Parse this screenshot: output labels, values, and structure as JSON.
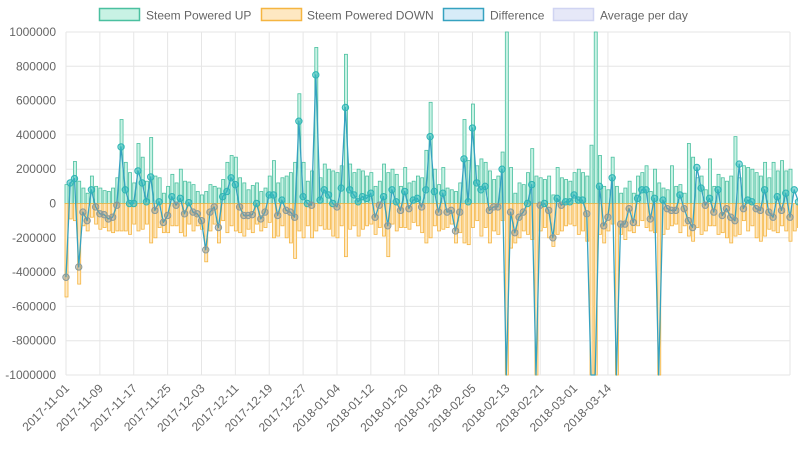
{
  "chart_data": {
    "type": "bar",
    "title": "",
    "xlabel": "",
    "ylabel": "",
    "ylim": [
      -1000000,
      1000000
    ],
    "y_ticks": [
      1000000,
      800000,
      600000,
      400000,
      200000,
      0,
      -200000,
      -400000,
      -600000,
      -800000,
      -1000000
    ],
    "y_tick_labels": [
      "1000000",
      "800000",
      "600000",
      "400000",
      "200000",
      "0",
      "-200000",
      "-400000",
      "-600000",
      "-800000",
      "-1000000"
    ],
    "x_range": [
      "2017-11-01",
      "2018-03-14"
    ],
    "x_tick_labels": [
      "2017-11-01",
      "2017-11-09",
      "2017-11-17",
      "2017-11-25",
      "2017-12-03",
      "2017-12-11",
      "2017-12-19",
      "2017-12-27",
      "2018-01-04",
      "2018-01-12",
      "2018-01-20",
      "2018-01-28",
      "2018-02-05",
      "2018-02-13",
      "2018-02-21",
      "2018-03-01",
      "2018-03-14"
    ],
    "grid": true,
    "legend_position": "top",
    "series": [
      {
        "name": "Steem Powered UP",
        "type": "bar",
        "color": "#4bc0a0",
        "fill": "#c8f2e4",
        "values": [
          110000,
          120000,
          245000,
          130000,
          90000,
          60000,
          160000,
          100000,
          90000,
          75000,
          70000,
          90000,
          150000,
          490000,
          240000,
          180000,
          120000,
          350000,
          270000,
          130000,
          385000,
          160000,
          150000,
          60000,
          100000,
          170000,
          120000,
          200000,
          130000,
          125000,
          110000,
          70000,
          50000,
          70000,
          110000,
          100000,
          90000,
          140000,
          240000,
          280000,
          270000,
          150000,
          120000,
          80000,
          105000,
          120000,
          70000,
          90000,
          160000,
          250000,
          120000,
          150000,
          160000,
          180000,
          240000,
          640000,
          240000,
          130000,
          190000,
          910000,
          150000,
          230000,
          200000,
          190000,
          180000,
          220000,
          870000,
          230000,
          180000,
          200000,
          190000,
          160000,
          180000,
          100000,
          130000,
          230000,
          180000,
          200000,
          170000,
          100000,
          210000,
          120000,
          130000,
          160000,
          150000,
          310000,
          590000,
          200000,
          110000,
          210000,
          90000,
          80000,
          70000,
          120000,
          490000,
          250000,
          580000,
          220000,
          260000,
          240000,
          190000,
          140000,
          160000,
          300000,
          1000000,
          210000,
          60000,
          120000,
          110000,
          180000,
          320000,
          160000,
          150000,
          140000,
          160000,
          50000,
          210000,
          150000,
          140000,
          130000,
          180000,
          200000,
          180000,
          160000,
          340000,
          1000000,
          280000,
          100000,
          80000,
          270000,
          100000,
          60000,
          90000,
          130000,
          60000,
          160000,
          180000,
          220000,
          70000,
          200000,
          120000,
          90000,
          80000,
          220000,
          100000,
          110000,
          60000,
          350000,
          270000,
          150000,
          160000,
          80000,
          260000,
          100000,
          170000,
          150000,
          130000,
          160000,
          390000,
          150000,
          220000,
          210000,
          200000,
          180000,
          160000,
          240000,
          150000,
          240000,
          190000,
          250000,
          190000,
          200000
        ]
      },
      {
        "name": "Steem Powered DOWN",
        "type": "bar",
        "color": "#f5b541",
        "fill": "#fee8c2",
        "values": [
          -545000,
          -90000,
          -100000,
          -470000,
          -130000,
          -160000,
          -80000,
          -120000,
          -150000,
          -140000,
          -160000,
          -170000,
          -160000,
          -160000,
          -160000,
          -180000,
          -120000,
          -160000,
          -150000,
          -120000,
          -230000,
          -200000,
          -140000,
          -170000,
          -170000,
          -130000,
          -130000,
          -170000,
          -190000,
          -120000,
          -160000,
          -130000,
          -150000,
          -340000,
          -160000,
          -120000,
          -230000,
          -100000,
          -170000,
          -130000,
          -160000,
          -170000,
          -190000,
          -150000,
          -170000,
          -120000,
          -160000,
          -140000,
          -110000,
          -200000,
          -190000,
          -130000,
          -200000,
          -230000,
          -320000,
          -160000,
          -200000,
          -130000,
          -200000,
          -160000,
          -130000,
          -150000,
          -150000,
          -190000,
          -200000,
          -130000,
          -310000,
          -150000,
          -130000,
          -190000,
          -150000,
          -130000,
          -120000,
          -180000,
          -140000,
          -190000,
          -310000,
          -120000,
          -160000,
          -140000,
          -140000,
          -150000,
          -110000,
          -130000,
          -170000,
          -230000,
          -200000,
          -130000,
          -160000,
          -150000,
          -140000,
          -120000,
          -230000,
          -170000,
          -230000,
          -240000,
          -140000,
          -100000,
          -190000,
          -140000,
          -230000,
          -160000,
          -180000,
          -100000,
          -1000000,
          -260000,
          -230000,
          -200000,
          -160000,
          -180000,
          -210000,
          -1000000,
          -160000,
          -140000,
          -200000,
          -250000,
          -180000,
          -160000,
          -130000,
          -120000,
          -130000,
          -180000,
          -160000,
          -220000,
          -1000000,
          -1000000,
          -180000,
          -230000,
          -160000,
          -120000,
          -1000000,
          -180000,
          -210000,
          -160000,
          -170000,
          -130000,
          -100000,
          -140000,
          -160000,
          -170000,
          -1000000,
          -180000,
          -150000,
          -130000,
          -120000,
          -170000,
          -130000,
          -190000,
          -220000,
          -140000,
          -180000,
          -160000,
          -130000,
          -130000,
          -180000,
          -170000,
          -200000,
          -230000,
          -190000,
          -180000,
          -100000,
          -160000,
          -130000,
          -200000,
          -220000,
          -190000,
          -150000,
          -160000,
          -170000,
          -130000,
          -160000,
          -220000,
          -160000,
          -140000,
          -100000,
          -170000
        ]
      },
      {
        "name": "Difference",
        "type": "line",
        "color": "#36a2c0",
        "fill": "#d7ecf8",
        "values": [
          -430000,
          120000,
          145000,
          -370000,
          -50000,
          -100000,
          80000,
          -20000,
          -60000,
          -65000,
          -90000,
          -80000,
          -10000,
          330000,
          80000,
          0,
          0,
          190000,
          120000,
          10000,
          155000,
          -40000,
          10000,
          -110000,
          -70000,
          40000,
          -10000,
          30000,
          -60000,
          5000,
          -50000,
          -60000,
          -100000,
          -270000,
          -50000,
          -20000,
          -140000,
          40000,
          70000,
          150000,
          110000,
          -20000,
          -70000,
          -70000,
          -65000,
          0,
          -90000,
          -50000,
          50000,
          50000,
          -70000,
          20000,
          -40000,
          -50000,
          -80000,
          480000,
          40000,
          0,
          -10000,
          750000,
          20000,
          80000,
          50000,
          0,
          -20000,
          90000,
          560000,
          80000,
          50000,
          10000,
          40000,
          30000,
          60000,
          -80000,
          -10000,
          40000,
          -130000,
          80000,
          10000,
          -40000,
          70000,
          -30000,
          20000,
          30000,
          -20000,
          80000,
          390000,
          70000,
          -50000,
          60000,
          -50000,
          -40000,
          -160000,
          -50000,
          260000,
          10000,
          440000,
          120000,
          80000,
          100000,
          -40000,
          -20000,
          -20000,
          200000,
          -1000000,
          -50000,
          -170000,
          -80000,
          -50000,
          0,
          110000,
          -1000000,
          -10000,
          0,
          -40000,
          -200000,
          30000,
          -10000,
          10000,
          10000,
          50000,
          20000,
          20000,
          -60000,
          -1000000,
          -1000000,
          100000,
          -130000,
          -80000,
          150000,
          -1000000,
          -120000,
          -120000,
          -30000,
          -110000,
          30000,
          80000,
          80000,
          -90000,
          30000,
          -1000000,
          20000,
          -30000,
          -40000,
          -40000,
          50000,
          -30000,
          -100000,
          -140000,
          210000,
          90000,
          -10000,
          30000,
          -50000,
          80000,
          -70000,
          -30000,
          -80000,
          -100000,
          230000,
          -30000,
          20000,
          10000,
          -30000,
          -40000,
          80000,
          -50000,
          -80000,
          40000,
          -40000,
          60000,
          -80000,
          80000,
          10000,
          100000,
          90000
        ]
      },
      {
        "name": "Average per day",
        "type": "line",
        "color": "#d0d4f2",
        "fill": "#e6e8f8",
        "values": []
      }
    ]
  }
}
